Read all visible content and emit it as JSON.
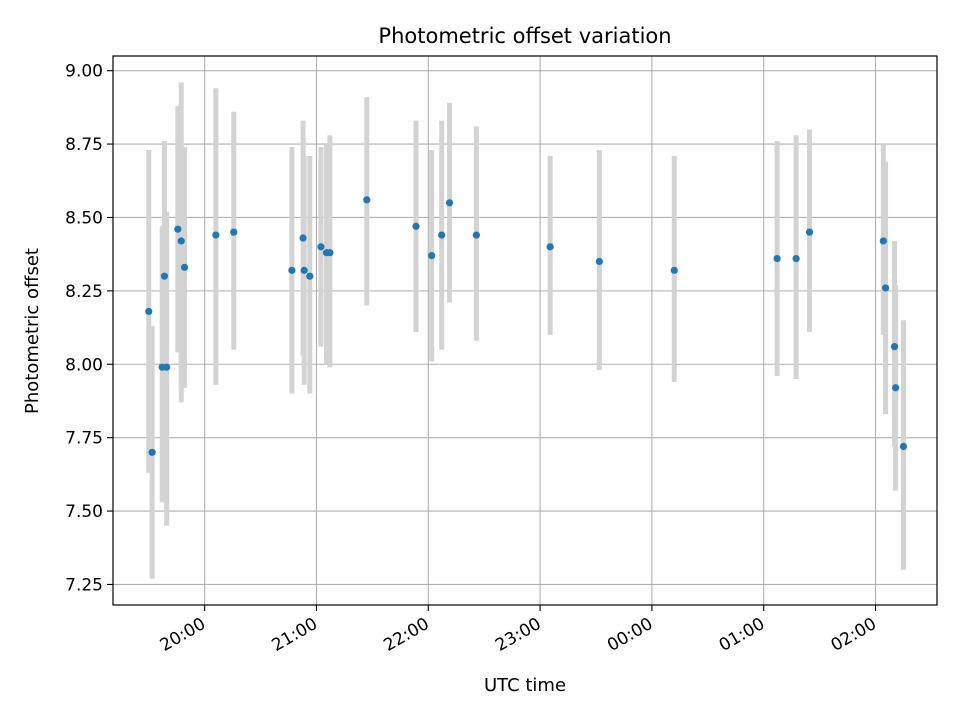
{
  "chart_data": {
    "type": "scatter",
    "title": "Photometric offset variation",
    "xlabel": "UTC time",
    "ylabel": "Photometric offset",
    "x_unit": "hours (UTC, continuing past midnight)",
    "xlim": [
      19.18,
      26.55
    ],
    "ylim": [
      7.18,
      9.05
    ],
    "grid": true,
    "x_ticks": [
      {
        "value": 20,
        "label": "20:00"
      },
      {
        "value": 21,
        "label": "21:00"
      },
      {
        "value": 22,
        "label": "22:00"
      },
      {
        "value": 23,
        "label": "23:00"
      },
      {
        "value": 24,
        "label": "00:00"
      },
      {
        "value": 25,
        "label": "01:00"
      },
      {
        "value": 26,
        "label": "02:00"
      }
    ],
    "y_ticks": [
      {
        "value": 7.25,
        "label": "7.25"
      },
      {
        "value": 7.5,
        "label": "7.50"
      },
      {
        "value": 7.75,
        "label": "7.75"
      },
      {
        "value": 8.0,
        "label": "8.00"
      },
      {
        "value": 8.25,
        "label": "8.25"
      },
      {
        "value": 8.5,
        "label": "8.50"
      },
      {
        "value": 8.75,
        "label": "8.75"
      },
      {
        "value": 9.0,
        "label": "9.00"
      }
    ],
    "marker_color": "#1f77b4",
    "errorbar_color": "#d3d3d3",
    "points": [
      {
        "x": 19.5,
        "y": 8.18,
        "lo": 7.63,
        "hi": 8.73
      },
      {
        "x": 19.53,
        "y": 7.7,
        "lo": 7.27,
        "hi": 8.13
      },
      {
        "x": 19.62,
        "y": 7.99,
        "lo": 7.53,
        "hi": 8.47
      },
      {
        "x": 19.64,
        "y": 8.3,
        "lo": 7.84,
        "hi": 8.76
      },
      {
        "x": 19.66,
        "y": 7.99,
        "lo": 7.45,
        "hi": 8.52
      },
      {
        "x": 19.76,
        "y": 8.46,
        "lo": 8.04,
        "hi": 8.88
      },
      {
        "x": 19.79,
        "y": 8.42,
        "lo": 7.87,
        "hi": 8.96
      },
      {
        "x": 19.82,
        "y": 8.33,
        "lo": 7.92,
        "hi": 8.74
      },
      {
        "x": 20.1,
        "y": 8.44,
        "lo": 7.93,
        "hi": 8.94
      },
      {
        "x": 20.26,
        "y": 8.45,
        "lo": 8.05,
        "hi": 8.86
      },
      {
        "x": 20.78,
        "y": 8.32,
        "lo": 7.9,
        "hi": 8.74
      },
      {
        "x": 20.88,
        "y": 8.43,
        "lo": 8.03,
        "hi": 8.83
      },
      {
        "x": 20.89,
        "y": 8.32,
        "lo": 7.93,
        "hi": 8.71
      },
      {
        "x": 20.94,
        "y": 8.3,
        "lo": 7.9,
        "hi": 8.71
      },
      {
        "x": 21.04,
        "y": 8.4,
        "lo": 8.06,
        "hi": 8.74
      },
      {
        "x": 21.09,
        "y": 8.38,
        "lo": 8.0,
        "hi": 8.75
      },
      {
        "x": 21.12,
        "y": 8.38,
        "lo": 7.99,
        "hi": 8.78
      },
      {
        "x": 21.45,
        "y": 8.56,
        "lo": 8.2,
        "hi": 8.91
      },
      {
        "x": 21.89,
        "y": 8.47,
        "lo": 8.11,
        "hi": 8.83
      },
      {
        "x": 22.03,
        "y": 8.37,
        "lo": 8.01,
        "hi": 8.73
      },
      {
        "x": 22.12,
        "y": 8.44,
        "lo": 8.05,
        "hi": 8.83
      },
      {
        "x": 22.19,
        "y": 8.55,
        "lo": 8.21,
        "hi": 8.89
      },
      {
        "x": 22.43,
        "y": 8.44,
        "lo": 8.08,
        "hi": 8.81
      },
      {
        "x": 23.09,
        "y": 8.4,
        "lo": 8.1,
        "hi": 8.71
      },
      {
        "x": 23.53,
        "y": 8.35,
        "lo": 7.98,
        "hi": 8.73
      },
      {
        "x": 24.2,
        "y": 8.32,
        "lo": 7.94,
        "hi": 8.71
      },
      {
        "x": 25.12,
        "y": 8.36,
        "lo": 7.96,
        "hi": 8.76
      },
      {
        "x": 25.29,
        "y": 8.36,
        "lo": 7.95,
        "hi": 8.78
      },
      {
        "x": 25.41,
        "y": 8.45,
        "lo": 8.11,
        "hi": 8.8
      },
      {
        "x": 26.07,
        "y": 8.42,
        "lo": 8.1,
        "hi": 8.75
      },
      {
        "x": 26.09,
        "y": 8.26,
        "lo": 7.83,
        "hi": 8.69
      },
      {
        "x": 26.17,
        "y": 8.06,
        "lo": 7.72,
        "hi": 8.42
      },
      {
        "x": 26.18,
        "y": 7.92,
        "lo": 7.57,
        "hi": 8.27
      },
      {
        "x": 26.25,
        "y": 7.72,
        "lo": 7.3,
        "hi": 8.15
      }
    ]
  }
}
